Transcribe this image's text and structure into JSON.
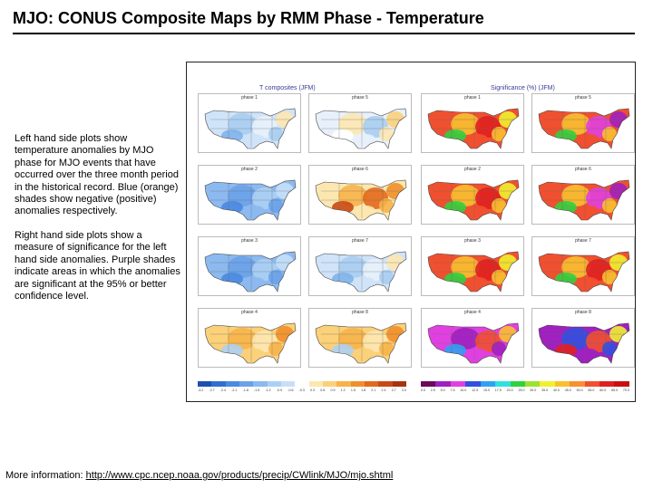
{
  "slide": {
    "title": "MJO: CONUS Composite Maps by RMM Phase - Temperature",
    "description_left": "Left hand side plots show temperature anomalies by MJO phase for MJO events that have occurred over the three month period in the historical record. Blue (orange) shades show negative (positive) anomalies respectively.",
    "description_right": "Right hand side plots show a measure of significance for the left hand side anomalies. Purple shades indicate areas in which the anomalies are significant at the 95% or better confidence level.",
    "more_info_label": "More information:",
    "more_info_link": "http://www.cpc.ncep.noaa.gov/products/precip/CWlink/MJO/mjo.shtml"
  },
  "figure": {
    "left_heading": "T composites (JFM)",
    "right_heading": "Significance (%) (JFM)",
    "composite_panels": [
      {
        "label": "phase 1",
        "tone": "cool-mixed"
      },
      {
        "label": "phase 5",
        "tone": "mixed"
      },
      {
        "label": "phase 2",
        "tone": "cool"
      },
      {
        "label": "phase 6",
        "tone": "warm-east"
      },
      {
        "label": "phase 3",
        "tone": "cool"
      },
      {
        "label": "phase 7",
        "tone": "cool-mixed"
      },
      {
        "label": "phase 4",
        "tone": "warm"
      },
      {
        "label": "phase 8",
        "tone": "warm"
      }
    ],
    "significance_panels": [
      {
        "label": "phase 1",
        "tone": "mixed"
      },
      {
        "label": "phase 5",
        "tone": "purple-east"
      },
      {
        "label": "phase 2",
        "tone": "mixed"
      },
      {
        "label": "phase 6",
        "tone": "purple-east"
      },
      {
        "label": "phase 3",
        "tone": "mixed"
      },
      {
        "label": "phase 7",
        "tone": "mixed"
      },
      {
        "label": "phase 4",
        "tone": "purple-north"
      },
      {
        "label": "phase 8",
        "tone": "purple-west"
      }
    ],
    "composite_colorbar": {
      "ticks": [
        "-3.2",
        "-2.7",
        "-2.4",
        "-2.1",
        "-1.8",
        "-1.5",
        "-1.2",
        "-0.9",
        "-0.6",
        "-0.3",
        "0.3",
        "0.6",
        "0.9",
        "1.2",
        "1.5",
        "1.8",
        "2.1",
        "2.4",
        "2.7",
        "3.0"
      ],
      "colors": [
        "#1f4fb0",
        "#2f6fd0",
        "#4a8ae0",
        "#6aa2e8",
        "#8cb9ef",
        "#acd0f4",
        "#c7e0f8",
        "#ffffff",
        "#fde7b0",
        "#fbd07a",
        "#f7b24a",
        "#ef8f2a",
        "#e2691c",
        "#c84a14",
        "#a83210"
      ]
    },
    "significance_colorbar": {
      "ticks": [
        "0.0",
        "2.5",
        "5.0",
        "7.5",
        "10.0",
        "12.5",
        "15.0",
        "17.5",
        "20.0",
        "25.0",
        "30.0",
        "35.0",
        "40.0",
        "45.0",
        "50.0",
        "55.0",
        "60.0",
        "65.0",
        "70.0"
      ],
      "colors": [
        "#6a0a5a",
        "#a020c0",
        "#e040e0",
        "#3050e0",
        "#30a0f0",
        "#30e0e0",
        "#30d040",
        "#a0e030",
        "#f0f030",
        "#f8c030",
        "#f89030",
        "#f05030",
        "#e02020",
        "#c81010"
      ]
    }
  }
}
